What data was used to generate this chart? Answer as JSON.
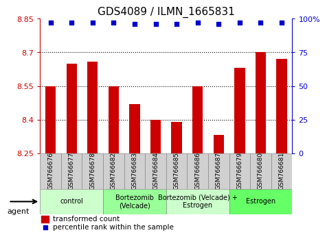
{
  "title": "GDS4089 / ILMN_1665831",
  "samples": [
    "GSM766676",
    "GSM766677",
    "GSM766678",
    "GSM766682",
    "GSM766683",
    "GSM766684",
    "GSM766685",
    "GSM766686",
    "GSM766687",
    "GSM766679",
    "GSM766680",
    "GSM766681"
  ],
  "bar_values": [
    8.55,
    8.65,
    8.66,
    8.55,
    8.47,
    8.4,
    8.39,
    8.55,
    8.33,
    8.63,
    8.7,
    8.67
  ],
  "percentile_values": [
    97,
    97,
    97,
    97,
    96,
    96,
    96,
    97,
    96,
    97,
    97,
    97
  ],
  "bar_color": "#cc0000",
  "dot_color": "#0000cc",
  "ylim_left": [
    8.25,
    8.85
  ],
  "ylim_right": [
    0,
    100
  ],
  "yticks_left": [
    8.25,
    8.4,
    8.55,
    8.7,
    8.85
  ],
  "yticks_right": [
    0,
    25,
    50,
    75,
    100
  ],
  "ytick_labels_right": [
    "0",
    "25",
    "50",
    "75",
    "100%"
  ],
  "groups": [
    {
      "label": "control",
      "start": 0,
      "end": 3,
      "color": "#ccffcc"
    },
    {
      "label": "Bortezomib\n(Velcade)",
      "start": 3,
      "end": 6,
      "color": "#99ff99"
    },
    {
      "label": "Bortezomib (Velcade) +\nEstrogen",
      "start": 6,
      "end": 9,
      "color": "#ccffcc"
    },
    {
      "label": "Estrogen",
      "start": 9,
      "end": 12,
      "color": "#66ff66"
    }
  ],
  "legend_bar_label": "transformed count",
  "legend_dot_label": "percentile rank within the sample",
  "agent_label": "agent",
  "background_color": "#ffffff",
  "plot_bg_color": "#ffffff",
  "tick_color_left": "#cc0000",
  "tick_color_right": "#0000cc",
  "sample_box_color": "#d0d0d0",
  "grid_yticks": [
    8.4,
    8.55,
    8.7
  ]
}
